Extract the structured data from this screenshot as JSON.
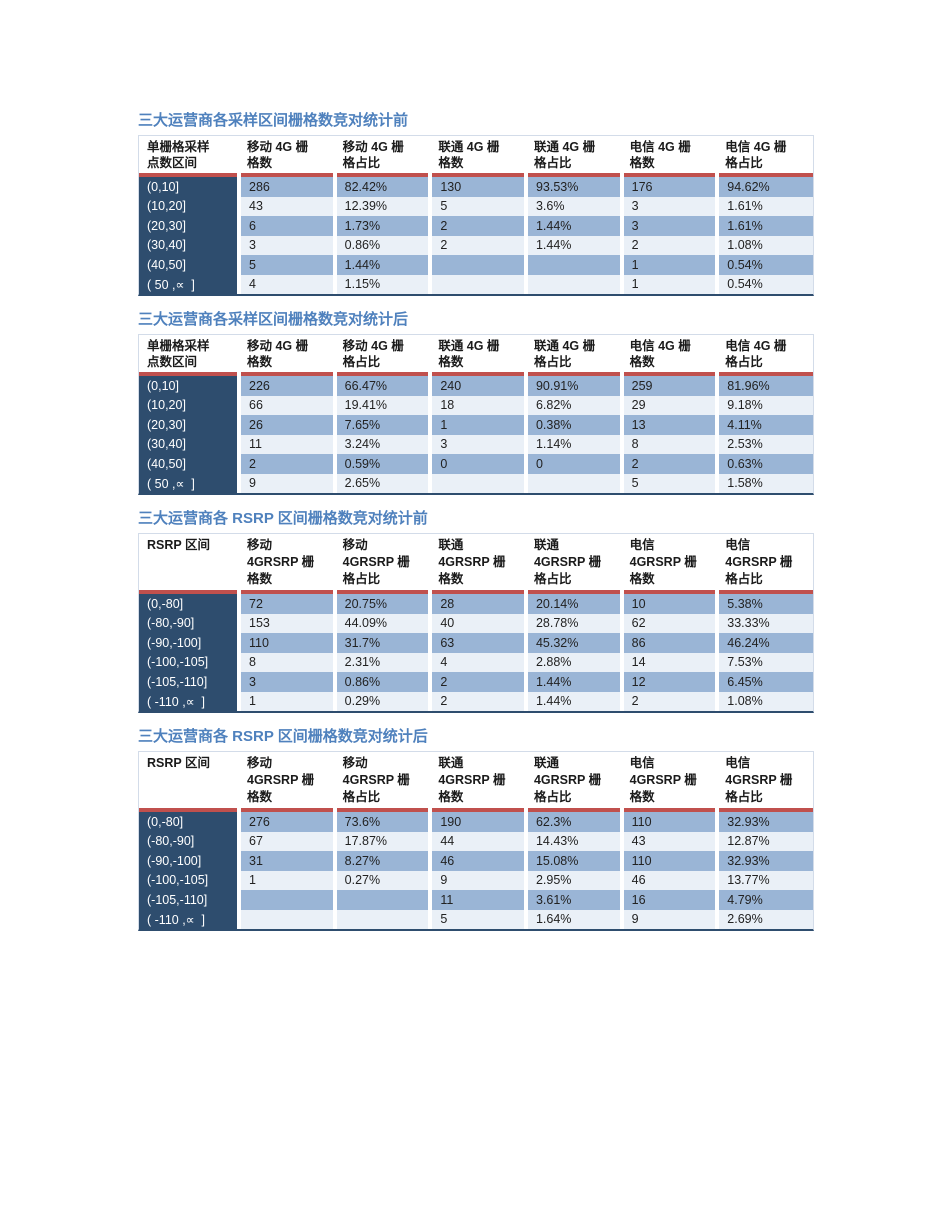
{
  "colors": {
    "title_blue": "#4F81BD",
    "accent_red": "#C0504D",
    "header_navy": "#2E4D6E",
    "band_medium": "#9AB5D6",
    "band_light": "#EAF0F7",
    "table_border": "#D3DCE9",
    "page_background": "#FFFFFF"
  },
  "tables": [
    {
      "title": "三大运营商各采样区间栅格数竞对统计前",
      "header": [
        "单栅格采样\n点数区间",
        "移动 4G 栅\n格数",
        "移动 4G 栅\n格占比",
        "联通 4G 栅\n格数",
        "联通 4G 栅\n格占比",
        "电信 4G 栅\n格数",
        "电信 4G 栅\n格占比"
      ],
      "rows": [
        [
          "(0,10]",
          "286",
          "82.42%",
          "130",
          "93.53%",
          "176",
          "94.62%"
        ],
        [
          "(10,20]",
          "43",
          "12.39%",
          "5",
          "3.6%",
          "3",
          "1.61%"
        ],
        [
          "(20,30]",
          "6",
          "1.73%",
          "2",
          "1.44%",
          "3",
          "1.61%"
        ],
        [
          "(30,40]",
          "3",
          "0.86%",
          "2",
          "1.44%",
          "2",
          "1.08%"
        ],
        [
          "(40,50]",
          "5",
          "1.44%",
          "",
          "",
          "1",
          "0.54%"
        ],
        [
          "( 50 ,∝  ]",
          "4",
          "1.15%",
          "",
          "",
          "1",
          "0.54%"
        ]
      ]
    },
    {
      "title": "三大运营商各采样区间栅格数竞对统计后",
      "header": [
        "单栅格采样\n点数区间",
        "移动 4G 栅\n格数",
        "移动 4G 栅\n格占比",
        "联通 4G 栅\n格数",
        "联通 4G 栅\n格占比",
        "电信 4G 栅\n格数",
        "电信 4G 栅\n格占比"
      ],
      "rows": [
        [
          "(0,10]",
          "226",
          "66.47%",
          "240",
          "90.91%",
          "259",
          "81.96%"
        ],
        [
          "(10,20]",
          "66",
          "19.41%",
          "18",
          "6.82%",
          "29",
          "9.18%"
        ],
        [
          "(20,30]",
          "26",
          "7.65%",
          "1",
          "0.38%",
          "13",
          "4.11%"
        ],
        [
          "(30,40]",
          "11",
          "3.24%",
          "3",
          "1.14%",
          "8",
          "2.53%"
        ],
        [
          "(40,50]",
          "2",
          "0.59%",
          "0",
          "0",
          "2",
          "0.63%"
        ],
        [
          "( 50 ,∝  ]",
          "9",
          "2.65%",
          "",
          "",
          "5",
          "1.58%"
        ]
      ]
    },
    {
      "title": "三大运营商各 RSRP 区间栅格数竞对统计前",
      "header": [
        "RSRP 区间",
        "移动\n4GRSRP 栅\n格数",
        "移动\n4GRSRP 栅\n格占比",
        "联通\n4GRSRP 栅\n格数",
        "联通\n4GRSRP 栅\n格占比",
        "电信\n4GRSRP 栅\n格数",
        "电信\n4GRSRP 栅\n格占比"
      ],
      "rows": [
        [
          "(0,-80]",
          "72",
          "20.75%",
          "28",
          "20.14%",
          "10",
          "5.38%"
        ],
        [
          "(-80,-90]",
          "153",
          "44.09%",
          "40",
          "28.78%",
          "62",
          "33.33%"
        ],
        [
          "(-90,-100]",
          "110",
          "31.7%",
          "63",
          "45.32%",
          "86",
          "46.24%"
        ],
        [
          "(-100,-105]",
          "8",
          "2.31%",
          "4",
          "2.88%",
          "14",
          "7.53%"
        ],
        [
          "(-105,-110]",
          "3",
          "0.86%",
          "2",
          "1.44%",
          "12",
          "6.45%"
        ],
        [
          "( -110 ,∝  ]",
          "1",
          "0.29%",
          "2",
          "1.44%",
          "2",
          "1.08%"
        ]
      ]
    },
    {
      "title": "三大运营商各 RSRP 区间栅格数竞对统计后",
      "header": [
        "RSRP 区间",
        "移动\n4GRSRP 栅\n格数",
        "移动\n4GRSRP 栅\n格占比",
        "联通\n4GRSRP 栅\n格数",
        "联通\n4GRSRP 栅\n格占比",
        "电信\n4GRSRP 栅\n格数",
        "电信\n4GRSRP 栅\n格占比"
      ],
      "rows": [
        [
          "(0,-80]",
          "276",
          "73.6%",
          "190",
          "62.3%",
          "110",
          "32.93%"
        ],
        [
          "(-80,-90]",
          "67",
          "17.87%",
          "44",
          "14.43%",
          "43",
          "12.87%"
        ],
        [
          "(-90,-100]",
          "31",
          "8.27%",
          "46",
          "15.08%",
          "110",
          "32.93%"
        ],
        [
          "(-100,-105]",
          "1",
          "0.27%",
          "9",
          "2.95%",
          "46",
          "13.77%"
        ],
        [
          "(-105,-110]",
          "",
          "",
          "11",
          "3.61%",
          "16",
          "4.79%"
        ],
        [
          "( -110 ,∝  ]",
          "",
          "",
          "5",
          "1.64%",
          "9",
          "2.69%"
        ]
      ]
    }
  ]
}
